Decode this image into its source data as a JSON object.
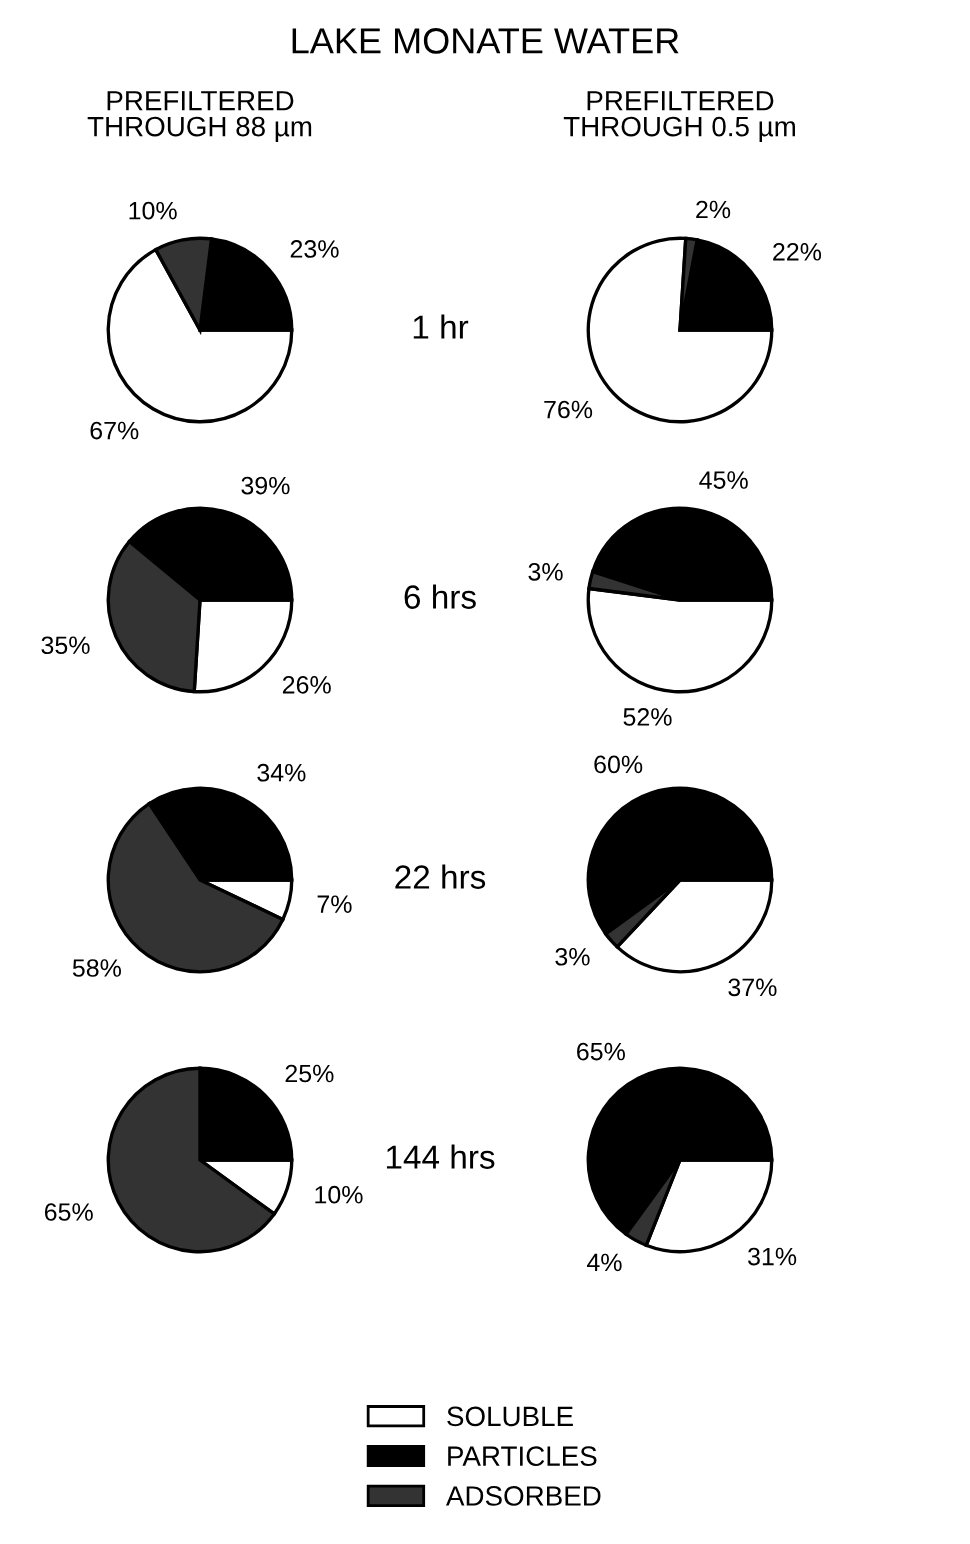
{
  "chart_data": [
    {
      "type": "pie",
      "title": "LAKE MONATE WATER",
      "subtitle": "PREFILTERED\nTHROUGH 88 µm",
      "annotations": [
        "1 hr"
      ],
      "legend": "bottom",
      "categories": [
        "SOLUBLE",
        "PARTICLES",
        "ADSORBED"
      ],
      "values": [
        67,
        23,
        10
      ],
      "value_labels": [
        "67%",
        "23%",
        "10%"
      ],
      "colors": [
        "#ffffff",
        "#000000",
        "#333333"
      ]
    },
    {
      "type": "pie",
      "subtitle": "PREFILTERED\nTHROUGH 0.5 µm",
      "values": [
        76,
        22,
        2
      ],
      "value_labels": [
        "76%",
        "22%",
        "2%"
      ],
      "colors": [
        "#ffffff",
        "#000000",
        "#333333"
      ]
    },
    {
      "type": "pie",
      "annotations": [
        "6 hrs"
      ],
      "values": [
        26,
        39,
        35
      ],
      "value_labels": [
        "26%",
        "39%",
        "35%"
      ],
      "colors": [
        "#ffffff",
        "#000000",
        "#333333"
      ]
    },
    {
      "type": "pie",
      "values": [
        52,
        45,
        3
      ],
      "value_labels": [
        "52%",
        "45%",
        "3%"
      ],
      "colors": [
        "#ffffff",
        "#000000",
        "#333333"
      ]
    },
    {
      "type": "pie",
      "annotations": [
        "22 hrs"
      ],
      "values": [
        7,
        34,
        58
      ],
      "value_labels": [
        "7%",
        "34%",
        "58%"
      ],
      "colors": [
        "#ffffff",
        "#000000",
        "#333333"
      ]
    },
    {
      "type": "pie",
      "values": [
        37,
        60,
        3
      ],
      "value_labels": [
        "37%",
        "60%",
        "3%"
      ],
      "colors": [
        "#ffffff",
        "#000000",
        "#333333"
      ]
    },
    {
      "type": "pie",
      "annotations": [
        "144 hrs"
      ],
      "values": [
        10,
        25,
        65
      ],
      "value_labels": [
        "10%",
        "25%",
        "65%"
      ],
      "colors": [
        "#ffffff",
        "#000000",
        "#333333"
      ]
    },
    {
      "type": "pie",
      "values": [
        31,
        65,
        4
      ],
      "value_labels": [
        "31%",
        "65%",
        "4%"
      ],
      "colors": [
        "#ffffff",
        "#000000",
        "#333333"
      ]
    }
  ]
}
